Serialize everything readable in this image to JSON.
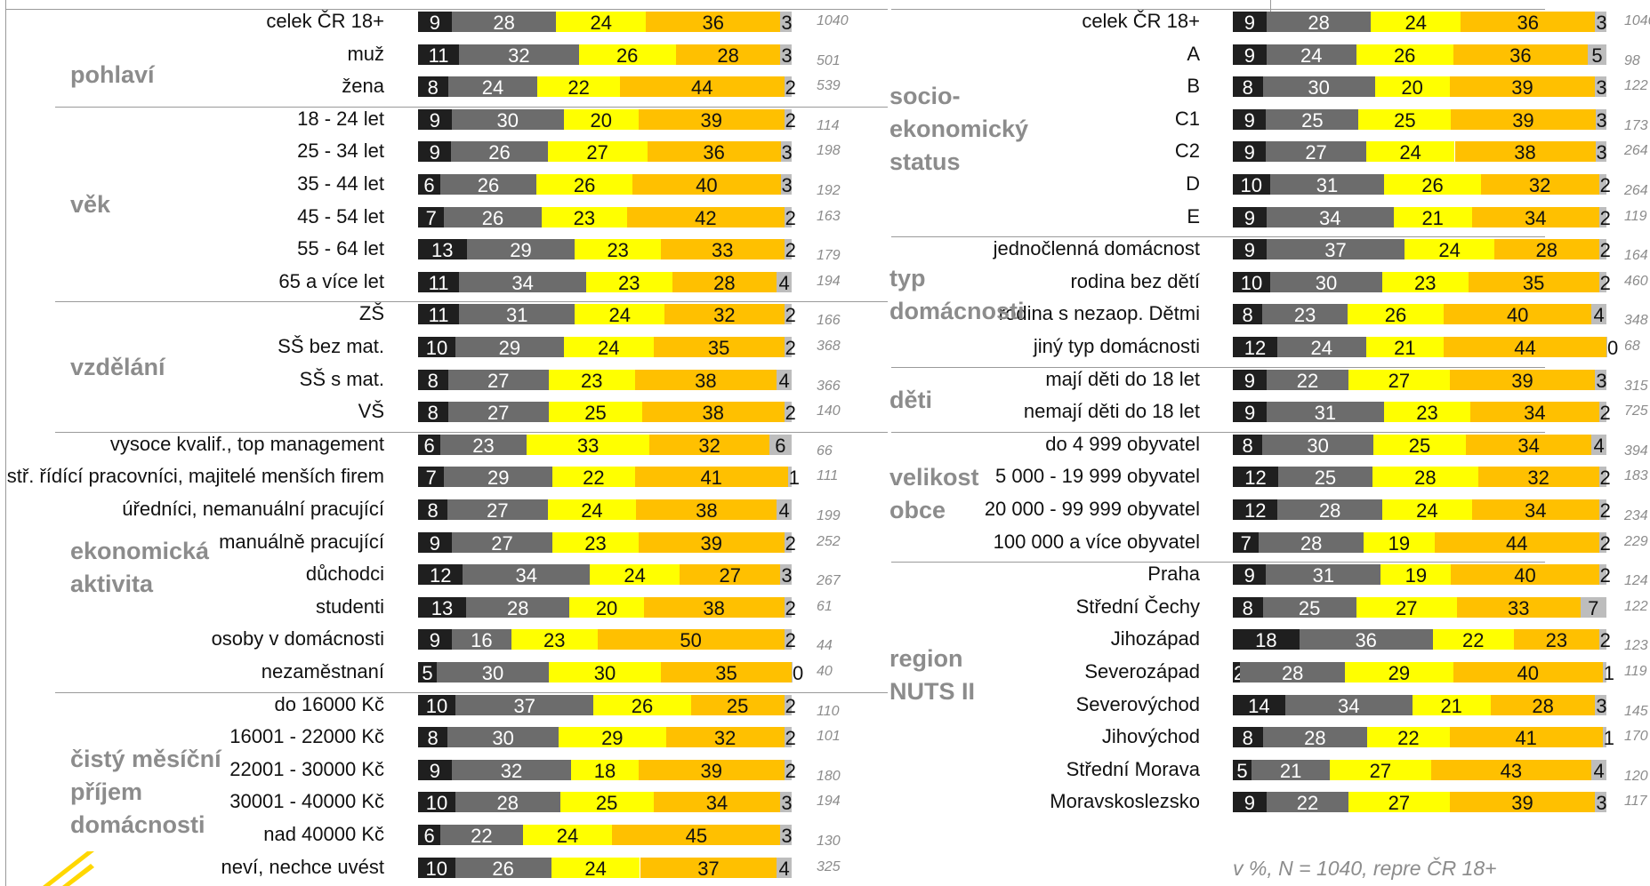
{
  "colors": {
    "c1": "#1f1f1f",
    "c2": "#6c6c6c",
    "c3": "#ffff00",
    "c4": "#ffc000",
    "c5": "#bdbdbd",
    "label": "#111111",
    "muted": "#8c8c8c"
  },
  "note": "v %, N = 1040, repre ČR 18+",
  "chart_data": [
    {
      "type": "bar",
      "orientation": "horizontal",
      "stacked": true,
      "unit": "%",
      "groups": [
        {
          "name": "",
          "rows": [
            0
          ]
        },
        {
          "name": "pohlaví",
          "rows": [
            1,
            2
          ]
        },
        {
          "name": "věk",
          "rows": [
            3,
            4,
            5,
            6,
            7,
            8
          ]
        },
        {
          "name": "vzdělání",
          "rows": [
            9,
            10,
            11,
            12
          ]
        },
        {
          "name": "ekonomická aktivita",
          "rows": [
            13,
            14,
            15,
            16,
            17,
            18,
            19,
            20
          ]
        },
        {
          "name": "čistý měsíční příjem domácnosti",
          "rows": [
            21,
            22,
            23,
            24,
            25,
            26
          ]
        }
      ],
      "rows": [
        {
          "label": "celek ČR 18+",
          "values": [
            9,
            28,
            24,
            36,
            3
          ],
          "n": "1040"
        },
        {
          "label": "muž",
          "values": [
            11,
            32,
            26,
            28,
            3
          ],
          "n": "501"
        },
        {
          "label": "žena",
          "values": [
            8,
            24,
            22,
            44,
            2
          ],
          "n": "539"
        },
        {
          "label": "18 - 24 let",
          "values": [
            9,
            30,
            20,
            39,
            2
          ],
          "n": "114"
        },
        {
          "label": "25 - 34 let",
          "values": [
            9,
            26,
            27,
            36,
            3
          ],
          "n": "198"
        },
        {
          "label": "35 - 44 let",
          "values": [
            6,
            26,
            26,
            40,
            3
          ],
          "n": "192"
        },
        {
          "label": "45 - 54  let",
          "values": [
            7,
            26,
            23,
            42,
            2
          ],
          "n": "163"
        },
        {
          "label": "55 - 64 let",
          "values": [
            13,
            29,
            23,
            33,
            2
          ],
          "n": "179"
        },
        {
          "label": "65 a více let",
          "values": [
            11,
            34,
            23,
            28,
            4
          ],
          "n": "194"
        },
        {
          "label": "ZŠ",
          "values": [
            11,
            31,
            24,
            32,
            2
          ],
          "n": "166"
        },
        {
          "label": "SŠ bez mat.",
          "values": [
            10,
            29,
            24,
            35,
            2
          ],
          "n": "368"
        },
        {
          "label": "SŠ s mat.",
          "values": [
            8,
            27,
            23,
            38,
            4
          ],
          "n": "366"
        },
        {
          "label": "VŠ",
          "values": [
            8,
            27,
            25,
            38,
            2
          ],
          "n": "140"
        },
        {
          "label": "vysoce kvalif., top management",
          "values": [
            6,
            23,
            33,
            32,
            6
          ],
          "n": "66"
        },
        {
          "label": "stř. řídící pracovníci, majitelé menších firem",
          "values": [
            7,
            29,
            22,
            41,
            1
          ],
          "n": "111"
        },
        {
          "label": "úředníci, nemanuální pracující",
          "values": [
            8,
            27,
            24,
            38,
            4
          ],
          "n": "199"
        },
        {
          "label": "manuálně pracující",
          "values": [
            9,
            27,
            23,
            39,
            2
          ],
          "n": "252"
        },
        {
          "label": "důchodci",
          "values": [
            12,
            34,
            24,
            27,
            3
          ],
          "n": "267"
        },
        {
          "label": "studenti",
          "values": [
            13,
            28,
            20,
            38,
            2
          ],
          "n": "61"
        },
        {
          "label": "osoby v domácnosti",
          "values": [
            9,
            16,
            23,
            50,
            2
          ],
          "n": "44"
        },
        {
          "label": "nezaměstnaní",
          "values": [
            5,
            30,
            30,
            35,
            0
          ],
          "n": "40"
        },
        {
          "label": "do 16000 Kč",
          "values": [
            10,
            37,
            26,
            25,
            2
          ],
          "n": "110"
        },
        {
          "label": "16001 - 22000 Kč",
          "values": [
            8,
            30,
            29,
            32,
            2
          ],
          "n": "101"
        },
        {
          "label": "22001 - 30000 Kč",
          "values": [
            9,
            32,
            18,
            39,
            2
          ],
          "n": "180"
        },
        {
          "label": "30001 - 40000 Kč",
          "values": [
            10,
            28,
            25,
            34,
            3
          ],
          "n": "194"
        },
        {
          "label": "nad 40000 Kč",
          "values": [
            6,
            22,
            24,
            45,
            3
          ],
          "n": "130"
        },
        {
          "label": "neví, nechce uvést",
          "values": [
            10,
            26,
            24,
            37,
            4
          ],
          "n": "325"
        }
      ]
    },
    {
      "type": "bar",
      "orientation": "horizontal",
      "stacked": true,
      "unit": "%",
      "groups": [
        {
          "name": "",
          "rows": [
            0
          ]
        },
        {
          "name": "socio-ekonomický status",
          "rows": [
            1,
            2,
            3,
            4,
            5,
            6
          ]
        },
        {
          "name": "typ domácnosti",
          "rows": [
            7,
            8,
            9,
            10
          ]
        },
        {
          "name": "děti",
          "rows": [
            11,
            12
          ]
        },
        {
          "name": "velikost obce",
          "rows": [
            13,
            14,
            15,
            16
          ]
        },
        {
          "name": "region NUTS II",
          "rows": [
            17,
            18,
            19,
            20,
            21,
            22,
            23,
            24
          ]
        }
      ],
      "rows": [
        {
          "label": "celek ČR 18+",
          "values": [
            9,
            28,
            24,
            36,
            3
          ],
          "n": "1040"
        },
        {
          "label": "A",
          "values": [
            9,
            24,
            26,
            36,
            5
          ],
          "n": "98"
        },
        {
          "label": "B",
          "values": [
            8,
            30,
            20,
            39,
            3
          ],
          "n": "122"
        },
        {
          "label": "C1",
          "values": [
            9,
            25,
            25,
            39,
            3
          ],
          "n": "173"
        },
        {
          "label": "C2",
          "values": [
            9,
            27,
            24,
            38,
            3
          ],
          "n": "264"
        },
        {
          "label": "D",
          "values": [
            10,
            31,
            26,
            32,
            2
          ],
          "n": "264"
        },
        {
          "label": "E",
          "values": [
            9,
            34,
            21,
            34,
            2
          ],
          "n": "119"
        },
        {
          "label": "jednočlenná domácnost",
          "values": [
            9,
            37,
            24,
            28,
            2
          ],
          "n": "164"
        },
        {
          "label": "rodina bez dětí",
          "values": [
            10,
            30,
            23,
            35,
            2
          ],
          "n": "460"
        },
        {
          "label": "rodina s nezaop. Dětmi",
          "values": [
            8,
            23,
            26,
            40,
            4
          ],
          "n": "348"
        },
        {
          "label": "jiný typ domácnosti",
          "values": [
            12,
            24,
            21,
            44,
            0
          ],
          "n": "68"
        },
        {
          "label": "mají děti do 18 let",
          "values": [
            9,
            22,
            27,
            39,
            3
          ],
          "n": "315"
        },
        {
          "label": "nemají děti do 18 let",
          "values": [
            9,
            31,
            23,
            34,
            2
          ],
          "n": "725"
        },
        {
          "label": "do 4 999 obyvatel",
          "values": [
            8,
            30,
            25,
            34,
            4
          ],
          "n": "394"
        },
        {
          "label": "5 000 - 19 999 obyvatel",
          "values": [
            12,
            25,
            28,
            32,
            2
          ],
          "n": "183"
        },
        {
          "label": "20 000 - 99 999 obyvatel",
          "values": [
            12,
            28,
            24,
            34,
            2
          ],
          "n": "234"
        },
        {
          "label": "100 000 a více obyvatel",
          "values": [
            7,
            28,
            19,
            44,
            2
          ],
          "n": "229"
        },
        {
          "label": "Praha",
          "values": [
            9,
            31,
            19,
            40,
            2
          ],
          "n": "124"
        },
        {
          "label": "Střední Čechy",
          "values": [
            8,
            25,
            27,
            33,
            7
          ],
          "n": "122"
        },
        {
          "label": "Jihozápad",
          "values": [
            18,
            36,
            22,
            23,
            2
          ],
          "n": "123"
        },
        {
          "label": "Severozápad",
          "values": [
            2,
            28,
            29,
            40,
            1
          ],
          "n": "119"
        },
        {
          "label": "Severovýchod",
          "values": [
            14,
            34,
            21,
            28,
            3
          ],
          "n": "145"
        },
        {
          "label": "Jihovýchod",
          "values": [
            8,
            28,
            22,
            41,
            1
          ],
          "n": "170"
        },
        {
          "label": "Střední Morava",
          "values": [
            5,
            21,
            27,
            43,
            4
          ],
          "n": "120"
        },
        {
          "label": "Moravskoslezsko",
          "values": [
            9,
            22,
            27,
            39,
            3
          ],
          "n": "117"
        }
      ]
    }
  ]
}
